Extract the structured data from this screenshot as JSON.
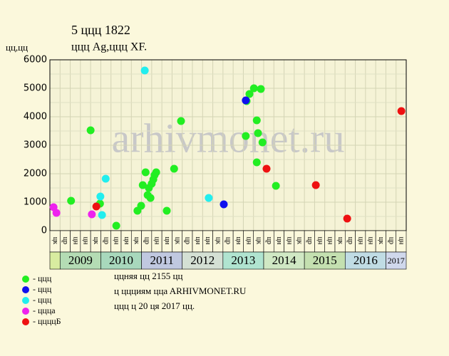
{
  "chart_data": {
    "type": "scatter",
    "title": "5 ццц 1822",
    "subtitle": "ццц Ag,ццц XF.",
    "y_label": "цц,цц",
    "watermark": "arhivmonet.ru",
    "xlim": [
      2008.75,
      2017.5
    ],
    "ylim": [
      0,
      6000
    ],
    "yticks": [
      0,
      1000,
      2000,
      3000,
      4000,
      5000,
      6000
    ],
    "grid": true,
    "column_labels": [
      "цк",
      "цр",
      "цн",
      "цн",
      "цк",
      "цр",
      "цн",
      "цн",
      "цк",
      "цр",
      "цн",
      "цн",
      "цк",
      "цр",
      "цн",
      "цн",
      "цк",
      "цр",
      "цн",
      "цн",
      "цк",
      "цр",
      "цн",
      "цн",
      "цк",
      "цр",
      "цн",
      "цн",
      "цк",
      "цр",
      "цн",
      "цн",
      "цк",
      "цр",
      "цн"
    ],
    "year_labels": [
      null,
      "2009",
      "2010",
      "2011",
      "2012",
      "2013",
      "2014",
      "2015",
      "2016",
      "2017"
    ],
    "year_colors": [
      "#d8eca0",
      "#b4dcb4",
      "#a8d8bc",
      "#c0c8e0",
      "#d4e0d4",
      "#b0e4d0",
      "#d0e8c4",
      "#c4e0b0",
      "#c0dce4",
      "#d0d8ec"
    ],
    "series": [
      {
        "name": "- ццц",
        "color": "#22ee22",
        "x": [
          2009.27,
          2009.75,
          2009.98,
          2010.38,
          2010.9,
          2010.99,
          2011.03,
          2011.1,
          2011.15,
          2011.18,
          2011.22,
          2011.25,
          2011.29,
          2011.32,
          2011.36,
          2011.62,
          2011.8,
          2011.97,
          2013.56,
          2013.58,
          2013.65,
          2013.76,
          2013.83,
          2013.86,
          2013.83,
          2013.93,
          2013.97,
          2014.3
        ],
        "values": [
          1050,
          3525,
          950,
          175,
          700,
          875,
          1600,
          2050,
          1250,
          1500,
          1150,
          1650,
          1800,
          1950,
          2050,
          700,
          2175,
          3850,
          3325,
          4550,
          4800,
          5000,
          3875,
          3425,
          2400,
          4975,
          3100,
          1575
        ]
      },
      {
        "name": "- ццц",
        "color": "#1010ee",
        "x": [
          2013.56,
          2013.02
        ],
        "values": [
          4575,
          925
        ]
      },
      {
        "name": "- ццц",
        "color": "#22eeee",
        "x": [
          2011.08,
          2010.12,
          2009.99,
          2010.03,
          2012.65
        ],
        "values": [
          5625,
          1825,
          1200,
          550,
          1150
        ]
      },
      {
        "name": "- ццца",
        "color": "#ee22ee",
        "x": [
          2008.84,
          2008.91,
          2009.78
        ],
        "values": [
          825,
          625,
          575
        ]
      },
      {
        "name": "- ццццБ",
        "color": "#ee1111",
        "x": [
          2009.89,
          2014.07,
          2015.28,
          2016.05,
          2017.38
        ],
        "values": [
          850,
          2175,
          1600,
          425,
          4200
        ]
      }
    ],
    "notes": [
      "ццняя цц 2155 цц",
      "ц ццциям ццa ARHIVMONET.RU",
      "ццц ц 20 ця 2017 цц."
    ]
  }
}
